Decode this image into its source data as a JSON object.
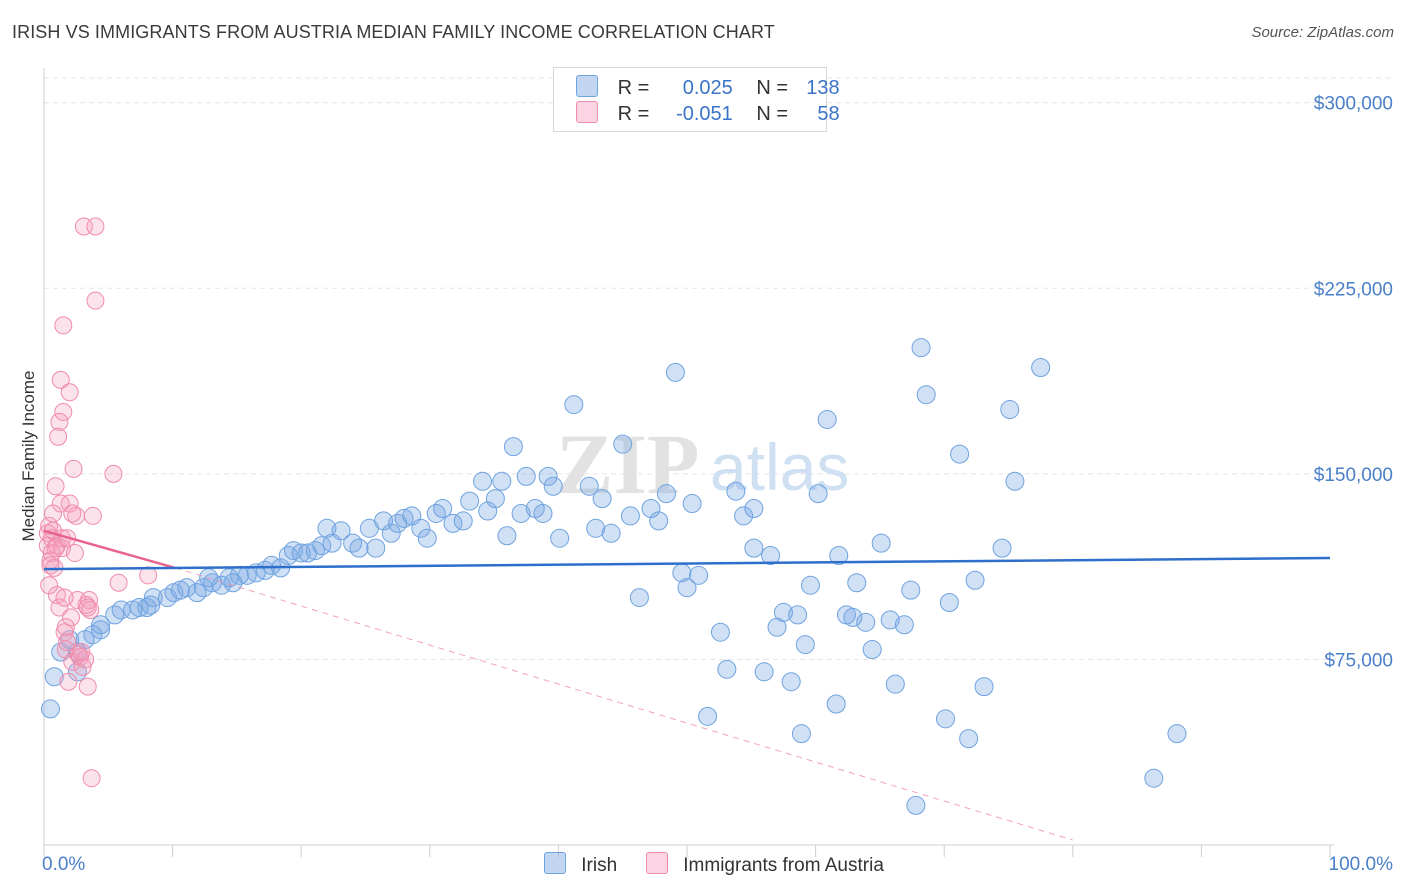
{
  "title": "IRISH VS IMMIGRANTS FROM AUSTRIA MEDIAN FAMILY INCOME CORRELATION CHART",
  "source": "Source: ZipAtlas.com",
  "watermark": {
    "zip": "ZIP",
    "atlas": "atlas"
  },
  "colors": {
    "irish": "#6fa3e0",
    "irish_fill": "rgba(120,165,225,0.35)",
    "irish_line": "#2f6fcc",
    "austria": "#f08cab",
    "austria_fill": "rgba(245,160,190,0.30)",
    "austria_line": "#e8648f",
    "tick_text": "#4a7fc9"
  },
  "legend": {
    "irish": {
      "r_label": "R =",
      "r_value": "0.025",
      "n_label": "N =",
      "n_value": "138"
    },
    "austria": {
      "r_label": "R =",
      "r_value": "-0.051",
      "n_label": "N =",
      "n_value": "58"
    }
  },
  "bottom_legend": {
    "irish": "Irish",
    "austria": "Immigrants from Austria"
  },
  "chart_data": {
    "type": "scatter",
    "title": "IRISH VS IMMIGRANTS FROM AUSTRIA MEDIAN FAMILY INCOME CORRELATION CHART",
    "xlabel": "",
    "ylabel": "Median Family Income",
    "xlim": [
      0,
      100
    ],
    "ylim": [
      0,
      310000
    ],
    "x_tick_labels": [
      "0.0%",
      "100.0%"
    ],
    "y_ticks": [
      75000,
      150000,
      225000,
      300000
    ],
    "y_tick_labels": [
      "$75,000",
      "$150,000",
      "$225,000",
      "$300,000"
    ],
    "grid": true,
    "series": [
      {
        "name": "Irish",
        "r": 0.025,
        "n": 138,
        "trend": {
          "x": [
            0,
            100
          ],
          "y": [
            111500,
            116000
          ]
        },
        "points": [
          [
            0.5,
            55000
          ],
          [
            0.8,
            68000
          ],
          [
            2.6,
            70000
          ],
          [
            1.3,
            78000
          ],
          [
            2,
            83000
          ],
          [
            2.6,
            78000
          ],
          [
            3.2,
            83000
          ],
          [
            3.8,
            85000
          ],
          [
            4.4,
            87000
          ],
          [
            4.4,
            89000
          ],
          [
            5.5,
            93000
          ],
          [
            6,
            95000
          ],
          [
            6.9,
            95000
          ],
          [
            7.4,
            96000
          ],
          [
            8,
            96000
          ],
          [
            8.3,
            97000
          ],
          [
            8.5,
            100000
          ],
          [
            9.6,
            100000
          ],
          [
            10.1,
            102000
          ],
          [
            10.6,
            103000
          ],
          [
            11.1,
            104000
          ],
          [
            11.9,
            102000
          ],
          [
            12.4,
            104000
          ],
          [
            12.8,
            108000
          ],
          [
            13.1,
            106000
          ],
          [
            13.8,
            105000
          ],
          [
            14.4,
            108000
          ],
          [
            14.7,
            106000
          ],
          [
            15.2,
            109000
          ],
          [
            15.8,
            109000
          ],
          [
            16.5,
            110000
          ],
          [
            17.2,
            111000
          ],
          [
            17.7,
            113000
          ],
          [
            18.4,
            112000
          ],
          [
            19,
            117000
          ],
          [
            19.4,
            119000
          ],
          [
            20,
            118000
          ],
          [
            20.5,
            118000
          ],
          [
            21.1,
            119000
          ],
          [
            21.6,
            121000
          ],
          [
            22,
            128000
          ],
          [
            22.4,
            122000
          ],
          [
            23.1,
            127000
          ],
          [
            24,
            122000
          ],
          [
            24.5,
            120000
          ],
          [
            25.3,
            128000
          ],
          [
            25.8,
            120000
          ],
          [
            26.4,
            131000
          ],
          [
            27,
            126000
          ],
          [
            27.5,
            130000
          ],
          [
            28,
            132000
          ],
          [
            28.6,
            133000
          ],
          [
            29.3,
            128000
          ],
          [
            29.8,
            124000
          ],
          [
            30.5,
            134000
          ],
          [
            31,
            136000
          ],
          [
            31.8,
            130000
          ],
          [
            32.6,
            131000
          ],
          [
            33.1,
            139000
          ],
          [
            34.1,
            147000
          ],
          [
            34.5,
            135000
          ],
          [
            35.1,
            140000
          ],
          [
            35.6,
            147000
          ],
          [
            36,
            125000
          ],
          [
            36.5,
            161000
          ],
          [
            37.1,
            134000
          ],
          [
            37.5,
            149000
          ],
          [
            38.2,
            136000
          ],
          [
            38.8,
            134000
          ],
          [
            39.2,
            149000
          ],
          [
            39.6,
            145000
          ],
          [
            40.1,
            124000
          ],
          [
            41.2,
            178000
          ],
          [
            42.4,
            145000
          ],
          [
            42.9,
            128000
          ],
          [
            43.4,
            140000
          ],
          [
            44.1,
            126000
          ],
          [
            45,
            162000
          ],
          [
            45.6,
            133000
          ],
          [
            46.3,
            100000
          ],
          [
            47.2,
            136000
          ],
          [
            47.8,
            131000
          ],
          [
            48.4,
            142000
          ],
          [
            49.1,
            191000
          ],
          [
            49.6,
            110000
          ],
          [
            50,
            104000
          ],
          [
            50.4,
            138000
          ],
          [
            50.9,
            109000
          ],
          [
            51.6,
            52000
          ],
          [
            52.6,
            86000
          ],
          [
            53.1,
            71000
          ],
          [
            53.8,
            143000
          ],
          [
            54.4,
            133000
          ],
          [
            55.2,
            136000
          ],
          [
            56,
            70000
          ],
          [
            56.5,
            117000
          ],
          [
            57,
            88000
          ],
          [
            57.5,
            94000
          ],
          [
            58.1,
            66000
          ],
          [
            58.6,
            93000
          ],
          [
            59.2,
            81000
          ],
          [
            59.6,
            105000
          ],
          [
            60.2,
            142000
          ],
          [
            60.9,
            172000
          ],
          [
            61.6,
            57000
          ],
          [
            62.4,
            93000
          ],
          [
            62.9,
            92000
          ],
          [
            63.2,
            106000
          ],
          [
            63.9,
            90000
          ],
          [
            64.4,
            79000
          ],
          [
            65.1,
            122000
          ],
          [
            65.8,
            91000
          ],
          [
            66.2,
            65000
          ],
          [
            66.9,
            89000
          ],
          [
            67.4,
            103000
          ],
          [
            68.2,
            201000
          ],
          [
            68.6,
            182000
          ],
          [
            70.1,
            51000
          ],
          [
            70.4,
            98000
          ],
          [
            71.2,
            158000
          ],
          [
            71.9,
            43000
          ],
          [
            72.4,
            107000
          ],
          [
            73.1,
            64000
          ],
          [
            74.5,
            120000
          ],
          [
            75.1,
            176000
          ],
          [
            75.5,
            147000
          ],
          [
            77.5,
            193000
          ],
          [
            86.3,
            27000
          ],
          [
            88.1,
            45000
          ],
          [
            67.8,
            16000
          ],
          [
            55.2,
            120000
          ],
          [
            61.8,
            117000
          ],
          [
            58.9,
            45000
          ]
        ]
      },
      {
        "name": "Immigrants from Austria",
        "r": -0.051,
        "n": 58,
        "trend": {
          "x": [
            0,
            10.2
          ],
          "y": [
            127000,
            112000
          ]
        },
        "trend_dashed": {
          "x": [
            10.2,
            80
          ],
          "y": [
            112000,
            2000
          ]
        },
        "points": [
          [
            0.3,
            126000
          ],
          [
            0.3,
            121000
          ],
          [
            0.4,
            129000
          ],
          [
            0.5,
            115000
          ],
          [
            0.6,
            124000
          ],
          [
            0.6,
            118000
          ],
          [
            0.7,
            127000
          ],
          [
            0.7,
            134000
          ],
          [
            0.8,
            112000
          ],
          [
            0.9,
            145000
          ],
          [
            1,
            121000
          ],
          [
            1,
            101000
          ],
          [
            1.2,
            96000
          ],
          [
            1.3,
            188000
          ],
          [
            1.3,
            138000
          ],
          [
            1.4,
            124000
          ],
          [
            1.4,
            120000
          ],
          [
            1.5,
            175000
          ],
          [
            1.5,
            210000
          ],
          [
            1.6,
            100000
          ],
          [
            1.6,
            86000
          ],
          [
            1.7,
            79000
          ],
          [
            1.8,
            82000
          ],
          [
            1.9,
            66000
          ],
          [
            2,
            183000
          ],
          [
            2,
            138000
          ],
          [
            2.1,
            92000
          ],
          [
            2.2,
            74000
          ],
          [
            2.3,
            152000
          ],
          [
            2.4,
            118000
          ],
          [
            2.5,
            133000
          ],
          [
            2.6,
            99000
          ],
          [
            2.7,
            77000
          ],
          [
            2.8,
            76000
          ],
          [
            3,
            72000
          ],
          [
            3.1,
            250000
          ],
          [
            3.2,
            75000
          ],
          [
            3.3,
            97000
          ],
          [
            3.4,
            64000
          ],
          [
            3.5,
            99000
          ],
          [
            3.6,
            95000
          ],
          [
            3.7,
            27000
          ],
          [
            3.8,
            133000
          ],
          [
            4,
            250000
          ],
          [
            4,
            220000
          ],
          [
            5.4,
            150000
          ],
          [
            5.8,
            106000
          ],
          [
            8.1,
            109000
          ],
          [
            0.5,
            113000
          ],
          [
            0.9,
            120000
          ],
          [
            1.1,
            165000
          ],
          [
            1.2,
            171000
          ],
          [
            1.8,
            124000
          ],
          [
            2.2,
            134000
          ],
          [
            2.9,
            78000
          ],
          [
            3.4,
            96000
          ],
          [
            0.4,
            105000
          ],
          [
            1.7,
            88000
          ]
        ]
      }
    ]
  }
}
